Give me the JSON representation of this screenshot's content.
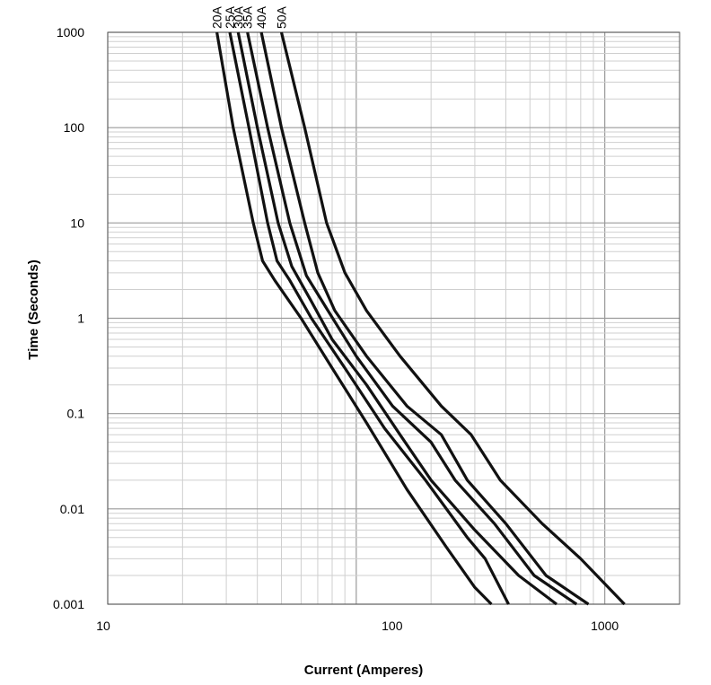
{
  "chart_data": {
    "type": "line",
    "title": "",
    "xlabel": "Current  (Amperes)",
    "ylabel": "Time (Seconds)",
    "x_scale": "log",
    "y_scale": "log",
    "xlim": [
      10,
      2000
    ],
    "ylim": [
      0.001,
      1000
    ],
    "grid": true,
    "legend": "series labels at top of each curve",
    "x_ticks": [
      {
        "value": 10,
        "label": "10"
      },
      {
        "value": 100,
        "label": "100"
      },
      {
        "value": 1000,
        "label": "1000"
      }
    ],
    "y_ticks": [
      {
        "value": 1000,
        "label": "1000"
      },
      {
        "value": 100,
        "label": "100"
      },
      {
        "value": 10,
        "label": "10"
      },
      {
        "value": 1,
        "label": "1"
      },
      {
        "value": 0.1,
        "label": "0.1"
      },
      {
        "value": 0.01,
        "label": "0.01"
      },
      {
        "value": 0.001,
        "label": "0.001"
      }
    ],
    "series": [
      {
        "name": "20A",
        "points": [
          [
            27.5,
            1000
          ],
          [
            32,
            100
          ],
          [
            38.5,
            10
          ],
          [
            42,
            4
          ],
          [
            47,
            2.5
          ],
          [
            60,
            1
          ],
          [
            80,
            0.3
          ],
          [
            110,
            0.08
          ],
          [
            160,
            0.016
          ],
          [
            230,
            0.004
          ],
          [
            300,
            0.0015
          ],
          [
            350,
            0.001
          ]
        ]
      },
      {
        "name": "25A",
        "points": [
          [
            31,
            1000
          ],
          [
            37,
            100
          ],
          [
            44,
            10
          ],
          [
            48,
            4
          ],
          [
            54,
            2.5
          ],
          [
            66,
            1
          ],
          [
            90,
            0.3
          ],
          [
            130,
            0.07
          ],
          [
            190,
            0.02
          ],
          [
            280,
            0.005
          ],
          [
            330,
            0.003
          ],
          [
            410,
            0.001
          ]
        ]
      },
      {
        "name": "30A",
        "points": [
          [
            33.5,
            1000
          ],
          [
            40,
            100
          ],
          [
            48.5,
            10
          ],
          [
            55,
            3.5
          ],
          [
            66,
            1.5
          ],
          [
            80,
            0.6
          ],
          [
            110,
            0.2
          ],
          [
            150,
            0.06
          ],
          [
            200,
            0.02
          ],
          [
            300,
            0.006
          ],
          [
            450,
            0.002
          ],
          [
            640,
            0.001
          ]
        ]
      },
      {
        "name": "35A",
        "points": [
          [
            36.5,
            1000
          ],
          [
            44,
            100
          ],
          [
            54,
            10
          ],
          [
            63,
            2.8
          ],
          [
            77,
            1.2
          ],
          [
            100,
            0.4
          ],
          [
            140,
            0.12
          ],
          [
            200,
            0.05
          ],
          [
            250,
            0.02
          ],
          [
            360,
            0.007
          ],
          [
            520,
            0.002
          ],
          [
            770,
            0.001
          ]
        ]
      },
      {
        "name": "40A",
        "points": [
          [
            41.5,
            1000
          ],
          [
            50,
            100
          ],
          [
            62,
            10
          ],
          [
            70,
            3
          ],
          [
            82,
            1.2
          ],
          [
            110,
            0.4
          ],
          [
            160,
            0.12
          ],
          [
            220,
            0.06
          ],
          [
            280,
            0.02
          ],
          [
            400,
            0.007
          ],
          [
            580,
            0.002
          ],
          [
            860,
            0.001
          ]
        ]
      },
      {
        "name": "50A",
        "points": [
          [
            50,
            1000
          ],
          [
            62,
            100
          ],
          [
            76,
            10
          ],
          [
            90,
            3
          ],
          [
            110,
            1.2
          ],
          [
            150,
            0.4
          ],
          [
            220,
            0.12
          ],
          [
            290,
            0.06
          ],
          [
            380,
            0.02
          ],
          [
            560,
            0.007
          ],
          [
            800,
            0.003
          ],
          [
            1200,
            0.001
          ]
        ]
      }
    ]
  }
}
